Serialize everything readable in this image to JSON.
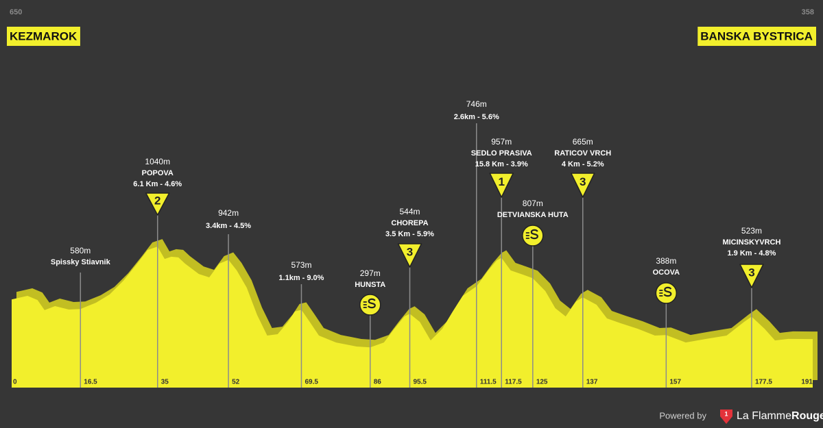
{
  "chart_data": {
    "type": "area",
    "start": {
      "altitude": "650",
      "name": "KEZMAROK",
      "km": 0
    },
    "finish": {
      "altitude": "358",
      "name": "BANSKA BYSTRICA",
      "km": 191
    },
    "xlim": [
      0,
      191
    ],
    "ylim": [
      0,
      2500
    ],
    "color": "#f2ef2c",
    "shadow_color": "#c2be22",
    "profile": {
      "km": [
        0,
        3.8,
        6.2,
        7.9,
        10.4,
        13.7,
        16.5,
        20.2,
        23.5,
        26.8,
        30.1,
        32.6,
        35,
        36.7,
        38.3,
        40,
        41.6,
        44.9,
        47.4,
        49.8,
        52,
        54,
        56.4,
        58.9,
        61.3,
        63.8,
        66.3,
        67.9,
        69.5,
        71.5,
        73.7,
        77.8,
        82.7,
        86,
        89.3,
        91.8,
        94.2,
        95.5,
        97.9,
        100.5,
        103.3,
        105.8,
        108.2,
        110.7,
        111.5,
        114.3,
        116.4,
        117.5,
        119.7,
        122.2,
        125,
        128,
        130.4,
        132.9,
        135.4,
        137,
        140.3,
        142.8,
        146,
        150.2,
        154.3,
        157,
        161.7,
        166.6,
        171.5,
        175.7,
        177.5,
        180.6,
        183.1,
        186.3,
        191
      ],
      "elevation": [
        650,
        677,
        646,
        571,
        601,
        576,
        580,
        626,
        687,
        788,
        914,
        1015,
        1040,
        949,
        965,
        960,
        914,
        838,
        813,
        914,
        942,
        864,
        737,
        535,
        384,
        394,
        485,
        561,
        573,
        485,
        384,
        333,
        303,
        297,
        333,
        434,
        525,
        544,
        485,
        348,
        434,
        561,
        677,
        730,
        746,
        864,
        939,
        957,
        864,
        838,
        807,
        712,
        586,
        525,
        636,
        665,
        611,
        510,
        475,
        434,
        384,
        388,
        333,
        359,
        384,
        485,
        523,
        434,
        348,
        359,
        358
      ]
    },
    "points": [
      {
        "km": 16.5,
        "altitude": "580m",
        "name": "Spissky Stiavnik"
      },
      {
        "km": 35,
        "altitude": "1040m",
        "name": "POPOVA",
        "climb": "6.1 Km - 4.6%",
        "category": "2"
      },
      {
        "km": 52,
        "altitude": "942m",
        "climb": "3.4km - 4.5%"
      },
      {
        "km": 69.5,
        "altitude": "573m",
        "climb": "1.1km - 9.0%"
      },
      {
        "km": 86,
        "altitude": "297m",
        "name": "HUNSTA",
        "icon": "sprint"
      },
      {
        "km": 95.5,
        "altitude": "544m",
        "name": "CHOREPA",
        "climb": "3.5 Km - 5.9%",
        "category": "3"
      },
      {
        "km": 111.5,
        "altitude": "746m",
        "climb": "2.6km - 5.6%"
      },
      {
        "km": 117.5,
        "altitude": "957m",
        "name": "SEDLO PRASIVA",
        "climb": "15.8 Km - 3.9%",
        "category": "1"
      },
      {
        "km": 125,
        "altitude": "807m",
        "name": "DETVIANSKA HUTA",
        "icon": "sprint"
      },
      {
        "km": 137,
        "altitude": "665m",
        "name": "RATICOV VRCH",
        "climb": "4 Km - 5.2%",
        "category": "3"
      },
      {
        "km": 157,
        "altitude": "388m",
        "name": "OCOVA",
        "icon": "sprint"
      },
      {
        "km": 177.5,
        "altitude": "523m",
        "name": "MICINSKYVRCH",
        "climb": "1.9 Km - 4.8%",
        "category": "3"
      }
    ]
  },
  "footer": {
    "powered": "Powered by",
    "brand_light": "La Flamme",
    "brand_bold": "Rouge"
  }
}
